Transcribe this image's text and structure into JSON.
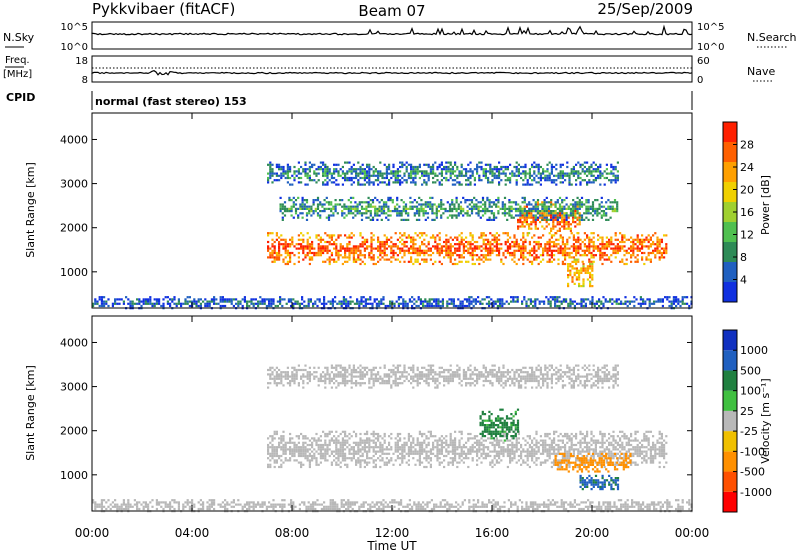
{
  "header": {
    "station": "Pykkvibaer (fitACF)",
    "beam": "Beam 07",
    "date": "25/Sep/2009"
  },
  "strips": {
    "nsky_label": "N.Sky",
    "nsky_ticks": [
      "10^5",
      "10^0"
    ],
    "nsearch_label": "N.Search",
    "nsearch_ticks": [
      "10^5",
      "10^0"
    ],
    "freq_label": "Freq.",
    "freq_unit": "[MHz]",
    "freq_ticks": [
      "18",
      "8"
    ],
    "nave_label": "Nave",
    "nave_ticks": [
      "60",
      "0"
    ],
    "cpid_label": "CPID",
    "cpid_text": "normal (fast stereo) 153"
  },
  "colors": {
    "power": [
      "#1030e0",
      "#2060c0",
      "#2e8b57",
      "#50c050",
      "#a0d030",
      "#f0d000",
      "#ffa000",
      "#ff6000",
      "#ff2000"
    ],
    "velocity": [
      "#ff0000",
      "#ff5000",
      "#ff9000",
      "#f0c000",
      "#b8b8b8",
      "#40c040",
      "#208040",
      "#2060c0",
      "#1030c0"
    ],
    "ground_scatter": "#b8b8b8"
  },
  "chart_data": [
    {
      "type": "heatmap",
      "name": "power",
      "ylabel": "Slant Range [km]",
      "ylim": [
        180,
        4600
      ],
      "yticks": [
        "1000",
        "2000",
        "3000",
        "4000"
      ],
      "colorbar_label": "Power [dB]",
      "colorbar_ticks": [
        "4",
        "8",
        "12",
        "16",
        "20",
        "24",
        "28"
      ],
      "clim": [
        0,
        30
      ],
      "features": [
        {
          "t0": 7.0,
          "t1": 23.0,
          "r0": 1200,
          "r1": 1900,
          "value": 26
        },
        {
          "t0": 17.0,
          "t1": 19.5,
          "r0": 1900,
          "r1": 2600,
          "value": 25
        },
        {
          "t0": 19.0,
          "t1": 20.0,
          "r0": 700,
          "r1": 1300,
          "value": 22
        },
        {
          "t0": 7.5,
          "t1": 21.0,
          "r0": 2200,
          "r1": 2700,
          "value": 10
        },
        {
          "t0": 7.0,
          "t1": 21.0,
          "r0": 3000,
          "r1": 3500,
          "value": 8
        },
        {
          "t0": 0.0,
          "t1": 24.0,
          "r0": 200,
          "r1": 450,
          "value": 6
        }
      ]
    },
    {
      "type": "heatmap",
      "name": "velocity",
      "ylabel": "Slant Range [km]",
      "ylim": [
        180,
        4600
      ],
      "yticks": [
        "1000",
        "2000",
        "3000",
        "4000"
      ],
      "colorbar_label": "Velocity [m s⁻¹]",
      "colorbar_ticks": [
        "1000",
        "500",
        "100",
        "25",
        "-25",
        "-100",
        "-500",
        "-1000"
      ],
      "features": [
        {
          "t0": 7.0,
          "t1": 23.0,
          "r0": 1200,
          "r1": 2000,
          "value": 0
        },
        {
          "t0": 15.5,
          "t1": 17.0,
          "r0": 1800,
          "r1": 2500,
          "value": 200
        },
        {
          "t0": 18.5,
          "t1": 21.5,
          "r0": 1100,
          "r1": 1500,
          "value": -300
        },
        {
          "t0": 19.5,
          "t1": 21.0,
          "r0": 700,
          "r1": 1000,
          "value": 600
        },
        {
          "t0": 7.0,
          "t1": 21.0,
          "r0": 3000,
          "r1": 3500,
          "value": 0
        },
        {
          "t0": 0.0,
          "t1": 24.0,
          "r0": 200,
          "r1": 450,
          "value": 0
        }
      ]
    }
  ],
  "time_axis": {
    "xlabel": "Time UT",
    "xlim": [
      0,
      24
    ],
    "ticks": [
      "00:00",
      "04:00",
      "08:00",
      "12:00",
      "16:00",
      "20:00",
      "00:00"
    ]
  }
}
